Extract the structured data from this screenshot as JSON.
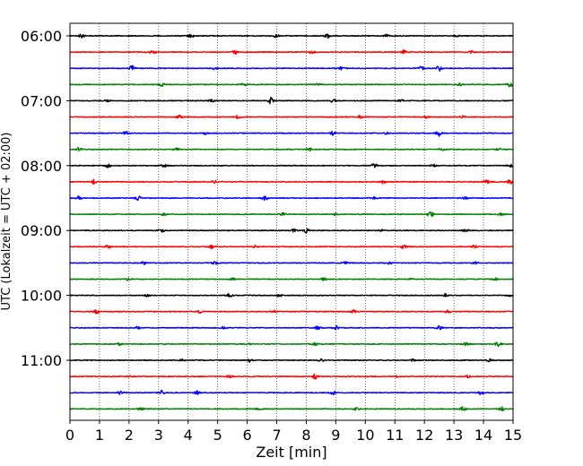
{
  "chart_data": {
    "type": "line",
    "title": "",
    "xlabel": "Zeit  [min]",
    "ylabel": "UTC (Lokalzeit = UTC + 02:00)",
    "xlim": [
      0,
      15
    ],
    "x_ticks": [
      "0",
      "1",
      "2",
      "3",
      "4",
      "5",
      "6",
      "7",
      "8",
      "9",
      "10",
      "11",
      "12",
      "13",
      "14",
      "15"
    ],
    "y_ticks": [
      "06:00",
      "07:00",
      "08:00",
      "09:00",
      "10:00",
      "11:00"
    ],
    "grid": "vertical-dotted",
    "trace_colors": [
      "#000000",
      "#ff0000",
      "#0000ff",
      "#008000"
    ],
    "series": [
      {
        "start": "06:00",
        "color": "#000000",
        "events": [
          [
            0.4,
            2.4
          ],
          [
            4.1,
            1.8
          ],
          [
            7.0,
            1.8
          ],
          [
            8.7,
            2.6
          ],
          [
            10.7,
            1.4
          ],
          [
            13.1,
            1.4
          ]
        ]
      },
      {
        "start": "06:15",
        "color": "#ff0000",
        "events": [
          [
            2.8,
            2.0
          ],
          [
            5.6,
            1.8
          ],
          [
            8.2,
            1.5
          ],
          [
            11.3,
            1.9
          ],
          [
            13.6,
            1.4
          ]
        ]
      },
      {
        "start": "06:30",
        "color": "#0000ff",
        "events": [
          [
            2.1,
            2.8
          ],
          [
            4.9,
            1.3
          ],
          [
            9.2,
            1.6
          ],
          [
            11.9,
            1.8
          ],
          [
            12.5,
            2.9
          ]
        ]
      },
      {
        "start": "06:45",
        "color": "#008000",
        "events": [
          [
            3.1,
            2.2
          ],
          [
            5.9,
            1.5
          ],
          [
            8.4,
            1.4
          ],
          [
            13.2,
            1.3
          ],
          [
            14.9,
            2.4
          ]
        ]
      },
      {
        "start": "07:00",
        "color": "#000000",
        "events": [
          [
            1.3,
            1.7
          ],
          [
            4.8,
            1.9
          ],
          [
            6.8,
            3.5
          ],
          [
            8.9,
            1.8
          ],
          [
            11.2,
            1.3
          ]
        ]
      },
      {
        "start": "07:15",
        "color": "#ff0000",
        "events": [
          [
            3.7,
            1.8
          ],
          [
            5.7,
            1.8
          ],
          [
            9.8,
            1.6
          ],
          [
            12.1,
            1.5
          ],
          [
            13.3,
            1.3
          ]
        ]
      },
      {
        "start": "07:30",
        "color": "#0000ff",
        "events": [
          [
            1.9,
            1.6
          ],
          [
            4.6,
            1.3
          ],
          [
            8.9,
            2.0
          ],
          [
            10.7,
            1.5
          ],
          [
            12.5,
            3.1
          ]
        ]
      },
      {
        "start": "07:45",
        "color": "#008000",
        "events": [
          [
            0.3,
            1.8
          ],
          [
            3.6,
            1.5
          ],
          [
            8.1,
            1.8
          ],
          [
            12.6,
            1.6
          ],
          [
            14.5,
            1.3
          ]
        ]
      },
      {
        "start": "08:00",
        "color": "#000000",
        "events": [
          [
            1.3,
            2.0
          ],
          [
            3.2,
            1.6
          ],
          [
            10.3,
            2.0
          ],
          [
            12.3,
            1.3
          ],
          [
            14.9,
            1.7
          ]
        ]
      },
      {
        "start": "08:15",
        "color": "#ff0000",
        "events": [
          [
            0.8,
            2.2
          ],
          [
            4.9,
            1.7
          ],
          [
            10.6,
            1.6
          ],
          [
            14.1,
            1.9
          ],
          [
            14.9,
            2.4
          ]
        ]
      },
      {
        "start": "08:30",
        "color": "#0000ff",
        "events": [
          [
            0.3,
            1.6
          ],
          [
            2.3,
            2.3
          ],
          [
            6.6,
            2.2
          ],
          [
            10.3,
            1.7
          ],
          [
            13.4,
            1.4
          ]
        ]
      },
      {
        "start": "08:45",
        "color": "#008000",
        "events": [
          [
            3.2,
            1.3
          ],
          [
            7.2,
            2.2
          ],
          [
            9.0,
            1.4
          ],
          [
            12.2,
            3.0
          ],
          [
            14.6,
            1.3
          ]
        ]
      },
      {
        "start": "09:00",
        "color": "#000000",
        "events": [
          [
            3.1,
            2.0
          ],
          [
            7.6,
            1.7
          ],
          [
            8.0,
            2.4
          ],
          [
            10.5,
            1.6
          ],
          [
            13.4,
            1.6
          ]
        ]
      },
      {
        "start": "09:15",
        "color": "#ff0000",
        "events": [
          [
            1.3,
            1.9
          ],
          [
            4.8,
            1.6
          ],
          [
            6.3,
            1.6
          ],
          [
            11.3,
            2.1
          ],
          [
            13.7,
            1.6
          ]
        ]
      },
      {
        "start": "09:30",
        "color": "#0000ff",
        "events": [
          [
            2.5,
            1.5
          ],
          [
            4.9,
            2.2
          ],
          [
            9.3,
            2.2
          ],
          [
            10.8,
            2.0
          ],
          [
            13.7,
            1.3
          ]
        ]
      },
      {
        "start": "09:45",
        "color": "#008000",
        "events": [
          [
            2.0,
            1.8
          ],
          [
            5.5,
            1.5
          ],
          [
            8.6,
            1.3
          ],
          [
            11.5,
            1.4
          ],
          [
            14.4,
            1.2
          ]
        ]
      },
      {
        "start": "10:00",
        "color": "#000000",
        "events": [
          [
            2.6,
            1.3
          ],
          [
            5.4,
            1.8
          ],
          [
            7.1,
            1.3
          ],
          [
            12.7,
            1.6
          ],
          [
            14.9,
            1.4
          ]
        ]
      },
      {
        "start": "10:15",
        "color": "#ff0000",
        "events": [
          [
            0.9,
            2.0
          ],
          [
            4.4,
            1.6
          ],
          [
            6.9,
            1.4
          ],
          [
            9.6,
            1.6
          ],
          [
            12.8,
            1.5
          ]
        ]
      },
      {
        "start": "10:30",
        "color": "#0000ff",
        "events": [
          [
            2.3,
            1.4
          ],
          [
            5.2,
            1.2
          ],
          [
            8.4,
            2.0
          ],
          [
            9.0,
            2.0
          ],
          [
            12.5,
            2.0
          ]
        ]
      },
      {
        "start": "10:45",
        "color": "#008000",
        "events": [
          [
            1.7,
            1.5
          ],
          [
            6.0,
            1.6
          ],
          [
            8.3,
            1.5
          ],
          [
            13.4,
            1.5
          ],
          [
            14.5,
            2.8
          ]
        ]
      },
      {
        "start": "11:00",
        "color": "#000000",
        "events": [
          [
            3.8,
            1.4
          ],
          [
            6.1,
            1.8
          ],
          [
            8.5,
            1.3
          ],
          [
            11.6,
            1.3
          ],
          [
            14.2,
            2.0
          ]
        ]
      },
      {
        "start": "11:15",
        "color": "#ff0000",
        "events": [
          [
            2.0,
            1.2
          ],
          [
            5.4,
            1.2
          ],
          [
            8.3,
            2.6
          ],
          [
            11.1,
            1.2
          ],
          [
            13.5,
            1.2
          ]
        ]
      },
      {
        "start": "11:30",
        "color": "#0000ff",
        "events": [
          [
            1.7,
            1.6
          ],
          [
            3.1,
            2.5
          ],
          [
            4.3,
            2.0
          ],
          [
            8.9,
            2.6
          ],
          [
            13.9,
            1.8
          ]
        ]
      },
      {
        "start": "11:45",
        "color": "#008000",
        "events": [
          [
            2.4,
            1.6
          ],
          [
            6.4,
            1.6
          ],
          [
            9.7,
            1.4
          ],
          [
            13.3,
            2.2
          ],
          [
            14.6,
            2.3
          ]
        ]
      }
    ]
  }
}
